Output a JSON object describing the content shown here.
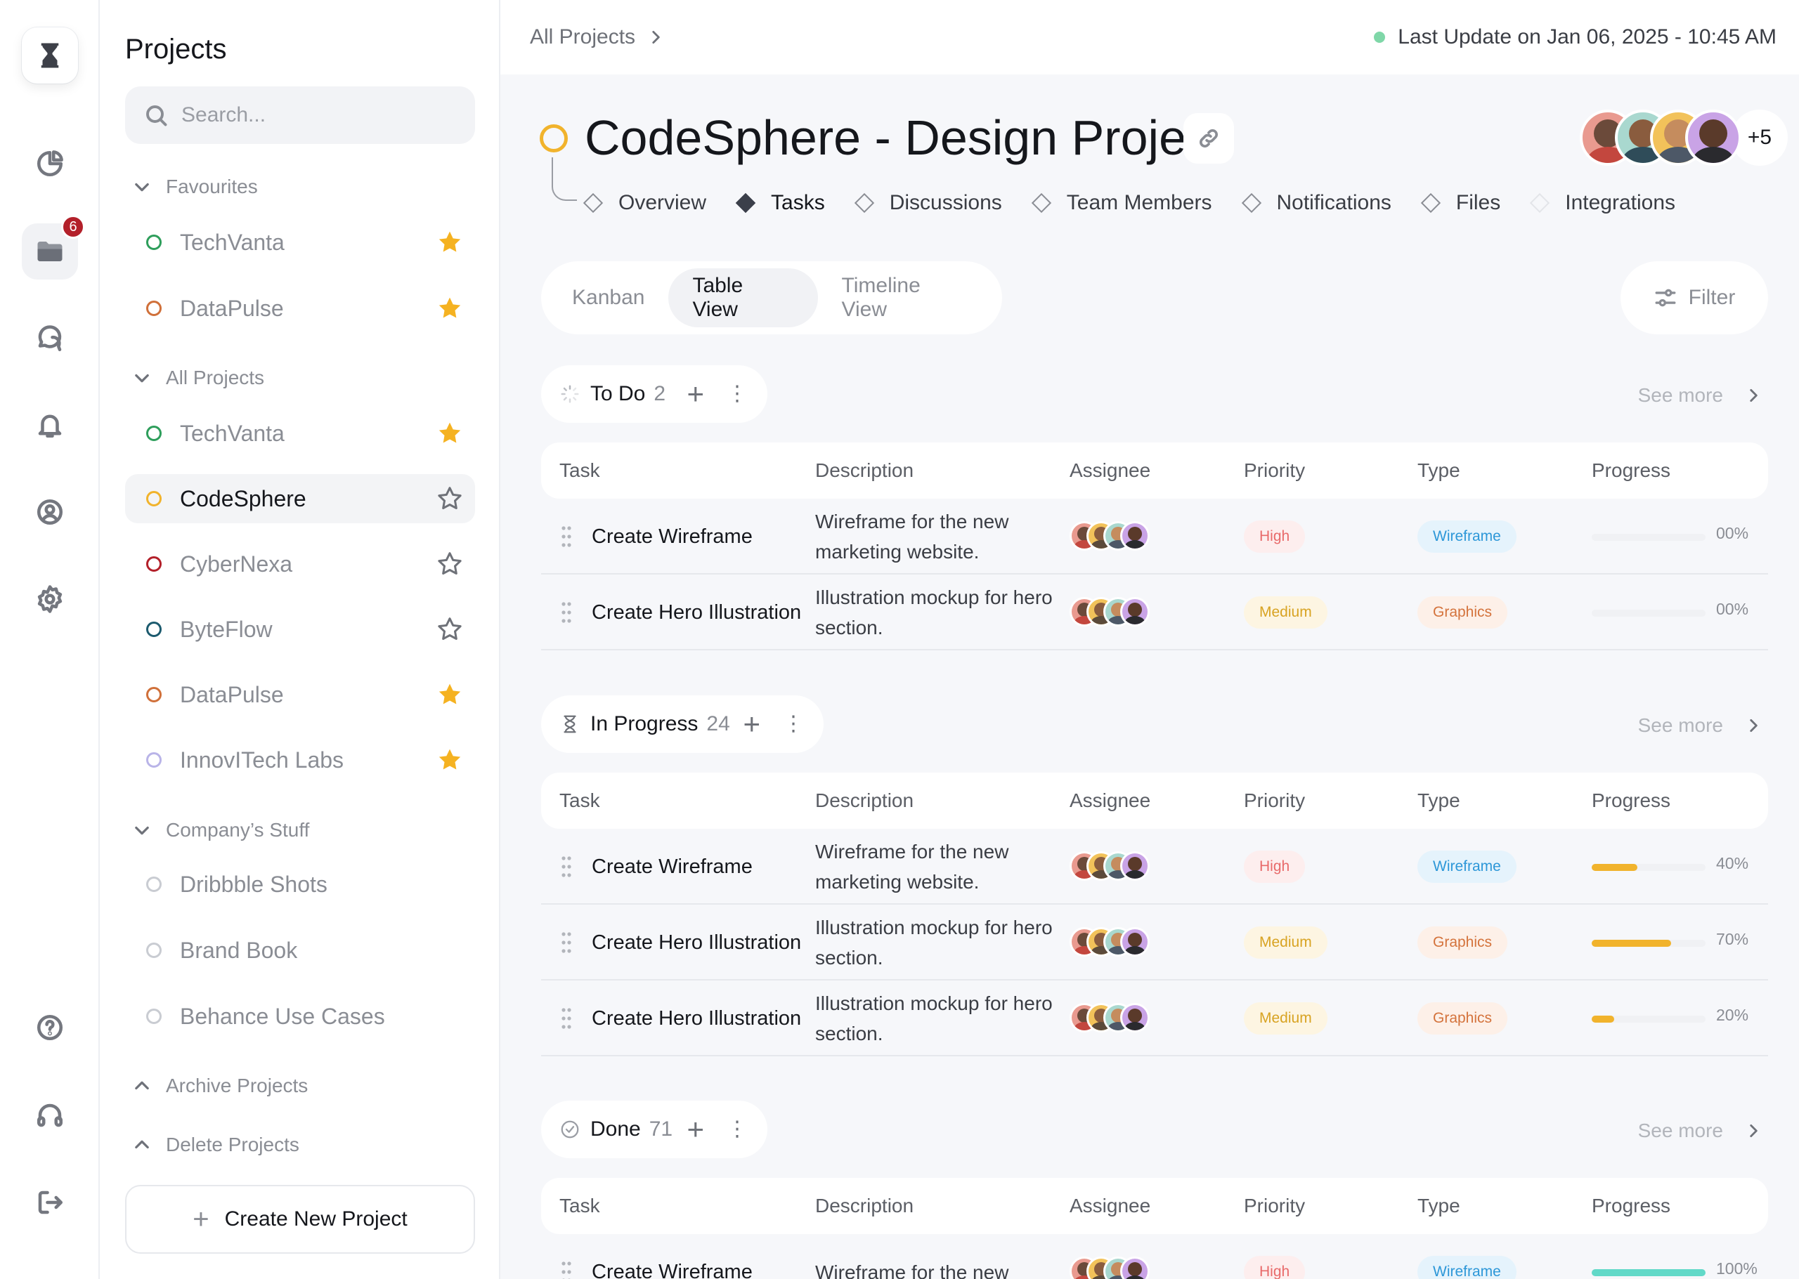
{
  "rail": {
    "badge": "6"
  },
  "sidebar": {
    "title": "Projects",
    "search_placeholder": "Search...",
    "sections": {
      "favourites": "Favourites",
      "all_projects": "All Projects",
      "company": "Company’s Stuff",
      "archive": "Archive Projects",
      "delete": "Delete Projects"
    },
    "favourites": [
      {
        "name": "TechVanta",
        "color": "#2e9e5b",
        "starred": true
      },
      {
        "name": "DataPulse",
        "color": "#d0703a",
        "starred": true
      }
    ],
    "all_projects": [
      {
        "name": "TechVanta",
        "color": "#2e9e5b",
        "starred": true
      },
      {
        "name": "CodeSphere",
        "color": "#f1b32c",
        "starred": false,
        "selected": true
      },
      {
        "name": "CyberNexa",
        "color": "#b3202a",
        "starred": false
      },
      {
        "name": "ByteFlow",
        "color": "#1c5a6e",
        "starred": false
      },
      {
        "name": "DataPulse",
        "color": "#d0703a",
        "starred": true
      },
      {
        "name": "InnovITech Labs",
        "color": "#b9b4e8",
        "starred": true
      }
    ],
    "company": [
      {
        "name": "Dribbble Shots",
        "color": "#c9ccd2"
      },
      {
        "name": "Brand Book",
        "color": "#c9ccd2"
      },
      {
        "name": "Behance Use Cases",
        "color": "#c9ccd2"
      }
    ],
    "create_label": "Create New Project"
  },
  "header": {
    "breadcrumb": "All Projects",
    "last_update": "Last Update on Jan 06, 2025 - 10:45 AM"
  },
  "project": {
    "title": "CodeSphere - Design Project",
    "members_more": "+5",
    "tabs": [
      "Overview",
      "Tasks",
      "Discussions",
      "Team Members",
      "Notifications",
      "Files",
      "Integrations"
    ],
    "active_tab": "Tasks"
  },
  "views": {
    "items": [
      "Kanban",
      "Table View",
      "Timeline View"
    ],
    "active": "Table View",
    "filter_label": "Filter"
  },
  "columns": [
    "Task",
    "Description",
    "Assignee",
    "Priority",
    "Type",
    "Progress"
  ],
  "see_more": "See more",
  "groups": [
    {
      "name": "To Do",
      "count": "2",
      "rows": [
        {
          "task": "Create Wireframe",
          "description": "Wireframe for the new marketing website.",
          "priority": "High",
          "type": "Wireframe",
          "progress": 0,
          "progress_label": "00%"
        },
        {
          "task": "Create Hero Illustration",
          "description": "Illustration mockup for hero section.",
          "priority": "Medium",
          "type": "Graphics",
          "progress": 0,
          "progress_label": "00%"
        }
      ]
    },
    {
      "name": "In Progress",
      "count": "24",
      "rows": [
        {
          "task": "Create Wireframe",
          "description": "Wireframe for the new marketing website.",
          "priority": "High",
          "type": "Wireframe",
          "progress": 40,
          "progress_label": "40%"
        },
        {
          "task": "Create Hero Illustration",
          "description": "Illustration mockup for hero section.",
          "priority": "Medium",
          "type": "Graphics",
          "progress": 70,
          "progress_label": "70%"
        },
        {
          "task": "Create Hero Illustration",
          "description": "Illustration mockup for hero section.",
          "priority": "Medium",
          "type": "Graphics",
          "progress": 20,
          "progress_label": "20%"
        }
      ]
    },
    {
      "name": "Done",
      "count": "71",
      "rows": [
        {
          "task": "Create Wireframe",
          "description": "Wireframe for the new",
          "priority": "High",
          "type": "Wireframe",
          "progress": 100,
          "progress_label": "100%"
        }
      ]
    }
  ],
  "colors": {
    "accent": "#f1b32c",
    "done_progress": "#62d9c8",
    "high_bg": "#fdeeee",
    "high_fg": "#e86a6a",
    "medium_bg": "#fdf5e2",
    "medium_fg": "#d8a322",
    "wireframe_bg": "#e5f3fc",
    "wireframe_fg": "#2d97d8",
    "graphics_bg": "#fdf0e8",
    "graphics_fg": "#d4733c"
  }
}
